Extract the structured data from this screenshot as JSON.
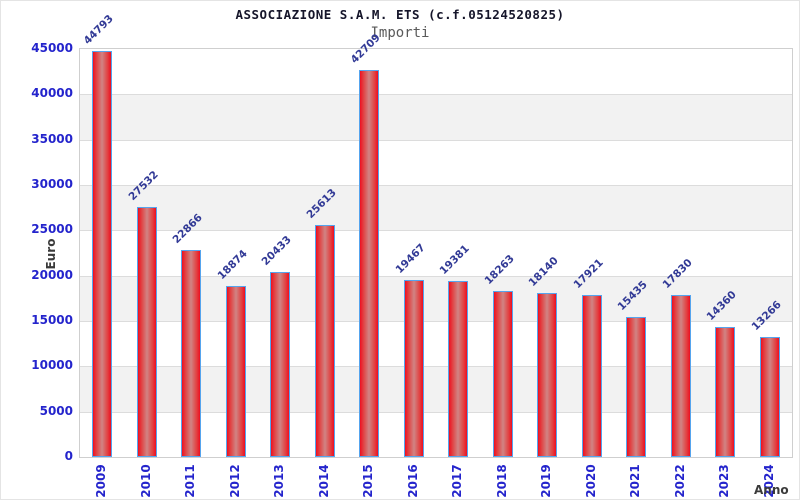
{
  "header": {
    "title": "ASSOCIAZIONE S.A.M. ETS (c.f.05124520825)",
    "subtitle": "Importi"
  },
  "chart_data": {
    "type": "bar",
    "title": "ASSOCIAZIONE S.A.M. ETS (c.f.05124520825)",
    "subtitle": "Importi",
    "xlabel": "Anno",
    "ylabel": "Euro",
    "categories": [
      "2009",
      "2010",
      "2011",
      "2012",
      "2013",
      "2014",
      "2015",
      "2016",
      "2017",
      "2018",
      "2019",
      "2020",
      "2021",
      "2022",
      "2023",
      "2024"
    ],
    "values": [
      44793,
      27532,
      22866,
      18874,
      20433,
      25613,
      42709,
      19467,
      19381,
      18263,
      18140,
      17921,
      15435,
      17830,
      14360,
      13266
    ],
    "ylim": [
      0,
      45000
    ],
    "ytick_step": 5000,
    "yticks": [
      0,
      5000,
      10000,
      15000,
      20000,
      25000,
      30000,
      35000,
      40000,
      45000
    ],
    "grid": "horizontal-gridlines-with-alternating-bands",
    "legend": "none",
    "bar_value_labels": true
  },
  "colors": {
    "bar_edge_red": "#ee0f20",
    "bar_center": "#d08484",
    "bar_border": "#55a4ee",
    "tick_label_blue": "#2424cc",
    "value_label_navy": "#323a96",
    "title_color": "#15152a",
    "subtitle_gray": "#5a5a5a",
    "band_gray": "#f2f2f2",
    "gridline": "#dcdcdc",
    "axis_label_dark": "#3a3a3a"
  }
}
